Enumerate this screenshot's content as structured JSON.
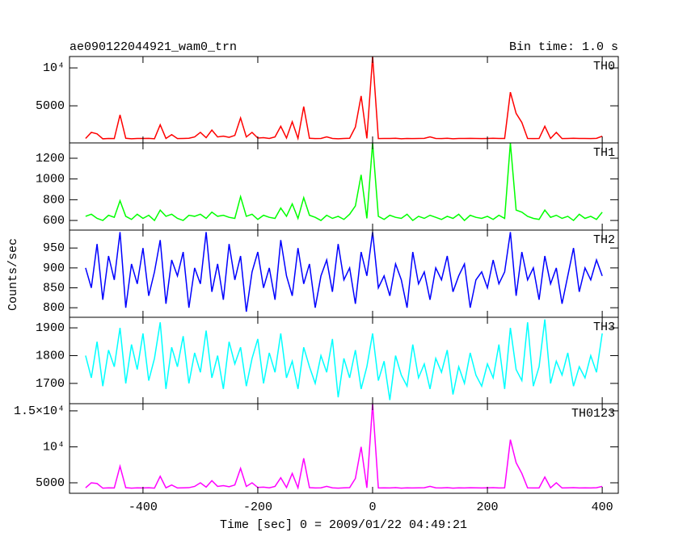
{
  "chart_data": {
    "type": "line",
    "title": "ae090122044921_wam0_trn",
    "subtitle": "Bin time: 1.0 s",
    "xlabel": "Time [sec] 0 = 2009/01/22 04:49:21",
    "ylabel": "Counts/sec",
    "xlim": [
      -528,
      428
    ],
    "xticks": [
      -400,
      -200,
      0,
      200,
      400
    ],
    "x": [
      -500,
      -490,
      -480,
      -470,
      -460,
      -450,
      -440,
      -430,
      -420,
      -410,
      -400,
      -390,
      -380,
      -370,
      -360,
      -350,
      -340,
      -330,
      -320,
      -310,
      -300,
      -290,
      -280,
      -270,
      -260,
      -250,
      -240,
      -230,
      -220,
      -210,
      -200,
      -190,
      -180,
      -170,
      -160,
      -150,
      -140,
      -130,
      -120,
      -110,
      -100,
      -90,
      -80,
      -70,
      -60,
      -50,
      -40,
      -30,
      -20,
      -10,
      0,
      10,
      20,
      30,
      40,
      50,
      60,
      70,
      80,
      90,
      100,
      110,
      120,
      130,
      140,
      150,
      160,
      170,
      180,
      190,
      200,
      210,
      220,
      230,
      240,
      250,
      260,
      270,
      280,
      290,
      300,
      310,
      320,
      330,
      340,
      350,
      360,
      370,
      380,
      390,
      400
    ],
    "panels": [
      {
        "ylim": [
          110,
          11500
        ],
        "yticks": [
          5000,
          {
            "value": 10000,
            "label": "10⁴"
          }
        ],
        "series": [
          {
            "name": "TH0",
            "color": "#ff0000",
            "values": [
              700,
              1500,
              1300,
              650,
              700,
              680,
              3800,
              720,
              650,
              700,
              690,
              710,
              660,
              2500,
              700,
              1200,
              680,
              700,
              720,
              900,
              1500,
              800,
              1800,
              900,
              1000,
              850,
              1100,
              3400,
              900,
              1500,
              750,
              800,
              700,
              900,
              2300,
              750,
              2900,
              700,
              4900,
              720,
              680,
              700,
              900,
              700,
              650,
              700,
              720,
              2200,
              6300,
              700,
              11500,
              680,
              700,
              690,
              720,
              650,
              700,
              680,
              700,
              710,
              900,
              700,
              680,
              720,
              660,
              700,
              690,
              710,
              700,
              680,
              700,
              720,
              690,
              700,
              6800,
              4000,
              2800,
              700,
              680,
              690,
              2300,
              700,
              1500,
              680,
              700,
              720,
              690,
              700,
              680,
              710,
              1000
            ]
          }
        ]
      },
      {
        "ylim": [
          507,
          1348
        ],
        "yticks": [
          600,
          800,
          1000,
          1200
        ],
        "series": [
          {
            "name": "TH1",
            "color": "#00ff00",
            "values": [
              640,
              660,
              620,
              600,
              650,
              630,
              790,
              640,
              610,
              660,
              620,
              650,
              600,
              700,
              640,
              660,
              620,
              600,
              650,
              640,
              660,
              620,
              680,
              640,
              650,
              630,
              620,
              830,
              640,
              660,
              610,
              650,
              630,
              620,
              720,
              640,
              760,
              620,
              820,
              650,
              630,
              600,
              650,
              620,
              640,
              610,
              660,
              740,
              1040,
              620,
              1348,
              640,
              610,
              650,
              630,
              620,
              660,
              600,
              640,
              620,
              650,
              630,
              610,
              640,
              620,
              660,
              600,
              650,
              630,
              620,
              640,
              610,
              650,
              620,
              1348,
              700,
              680,
              640,
              620,
              610,
              700,
              630,
              650,
              620,
              640,
              600,
              660,
              620,
              640,
              610,
              680
            ]
          }
        ]
      },
      {
        "ylim": [
          776,
          995
        ],
        "yticks": [
          800,
          850,
          900,
          950
        ],
        "series": [
          {
            "name": "TH2",
            "color": "#0000ff",
            "values": [
              900,
              850,
              960,
              820,
              930,
              870,
              990,
              800,
              910,
              860,
              950,
              830,
              890,
              970,
              810,
              920,
              880,
              940,
              800,
              900,
              860,
              990,
              840,
              910,
              820,
              960,
              870,
              930,
              790,
              890,
              940,
              850,
              900,
              820,
              970,
              880,
              830,
              950,
              860,
              910,
              800,
              880,
              920,
              840,
              960,
              870,
              900,
              810,
              940,
              880,
              990,
              850,
              880,
              830,
              910,
              870,
              800,
              940,
              860,
              890,
              820,
              900,
              870,
              930,
              840,
              880,
              910,
              800,
              870,
              890,
              850,
              920,
              860,
              890,
              990,
              830,
              940,
              870,
              900,
              820,
              930,
              860,
              900,
              810,
              880,
              950,
              840,
              900,
              870,
              920,
              880
            ]
          }
        ]
      },
      {
        "ylim": [
          1627,
          1938
        ],
        "yticks": [
          1700,
          1800,
          1900
        ],
        "series": [
          {
            "name": "TH3",
            "color": "#00ffff",
            "values": [
              1800,
              1720,
              1850,
              1690,
              1820,
              1760,
              1900,
              1700,
              1840,
              1750,
              1880,
              1710,
              1790,
              1920,
              1680,
              1830,
              1760,
              1870,
              1700,
              1810,
              1740,
              1890,
              1720,
              1800,
              1680,
              1850,
              1770,
              1830,
              1690,
              1790,
              1860,
              1700,
              1810,
              1740,
              1880,
              1720,
              1780,
              1680,
              1830,
              1760,
              1700,
              1800,
              1740,
              1860,
              1650,
              1790,
              1720,
              1820,
              1680,
              1760,
              1880,
              1710,
              1780,
              1640,
              1800,
              1730,
              1690,
              1840,
              1720,
              1770,
              1680,
              1790,
              1740,
              1820,
              1660,
              1760,
              1700,
              1810,
              1730,
              1690,
              1770,
              1720,
              1840,
              1680,
              1900,
              1750,
              1710,
              1920,
              1690,
              1760,
              1930,
              1700,
              1780,
              1730,
              1810,
              1690,
              1760,
              1720,
              1800,
              1740,
              1880
            ]
          }
        ]
      },
      {
        "ylim": [
          3540,
          16000
        ],
        "yticks": [
          5000,
          {
            "value": 10000,
            "label": "10⁴"
          },
          {
            "value": 15000,
            "label": "1.5×10⁴"
          }
        ],
        "series": [
          {
            "name": "TH0123",
            "color": "#ff00ff",
            "values": [
              4300,
              5000,
              4900,
              4250,
              4300,
              4280,
              7300,
              4320,
              4250,
              4300,
              4290,
              4310,
              4260,
              5900,
              4300,
              4700,
              4280,
              4300,
              4320,
              4500,
              5000,
              4400,
              5300,
              4500,
              4600,
              4450,
              4700,
              7000,
              4500,
              5000,
              4350,
              4400,
              4300,
              4500,
              5700,
              4350,
              6300,
              4300,
              8400,
              4320,
              4280,
              4300,
              4500,
              4300,
              4250,
              4300,
              4320,
              5600,
              10000,
              4300,
              16000,
              4280,
              4300,
              4290,
              4320,
              4250,
              4300,
              4280,
              4300,
              4310,
              4500,
              4300,
              4280,
              4320,
              4260,
              4300,
              4290,
              4310,
              4300,
              4280,
              4300,
              4320,
              4290,
              4300,
              11000,
              7800,
              6300,
              4300,
              4280,
              4290,
              5800,
              4300,
              5000,
              4280,
              4300,
              4320,
              4290,
              4300,
              4280,
              4310,
              4500
            ]
          }
        ]
      }
    ]
  }
}
